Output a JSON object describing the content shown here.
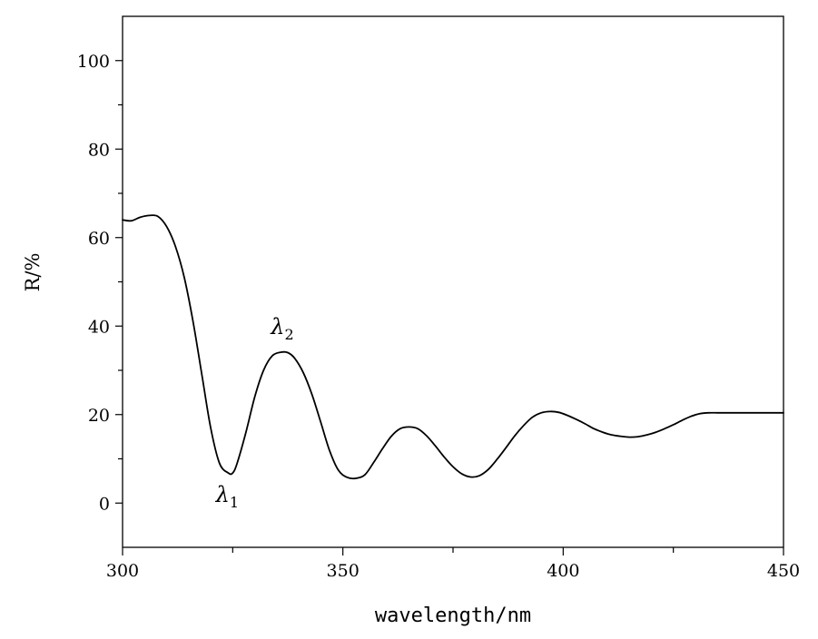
{
  "chart_data": {
    "type": "line",
    "title": "",
    "xlabel": "wavelength/nm",
    "ylabel": "R/%",
    "xlim": [
      300,
      450
    ],
    "ylim": [
      -10,
      110
    ],
    "x_ticks": [
      300,
      350,
      400,
      450
    ],
    "y_ticks": [
      0,
      20,
      40,
      60,
      80,
      100
    ],
    "x_minor_step": 25,
    "y_minor_step": 10,
    "grid": false,
    "series": [
      {
        "color": "#000000",
        "x": [
          300,
          302,
          304,
          306,
          308,
          310,
          312,
          314,
          316,
          318,
          320,
          322,
          324,
          325,
          326,
          328,
          330,
          332,
          334,
          336,
          337.5,
          339,
          341,
          343,
          345,
          347,
          349,
          351,
          353,
          355,
          357,
          359,
          361,
          363,
          365,
          367,
          369,
          371,
          373,
          375,
          377,
          379,
          381,
          383,
          385,
          387,
          389,
          391,
          393,
          395,
          397,
          399,
          401,
          403,
          405,
          407,
          409,
          411,
          413,
          415,
          417,
          419,
          421,
          423,
          425,
          427,
          429,
          431,
          433,
          435,
          437,
          439,
          441,
          443,
          445,
          447,
          449,
          450
        ],
        "y": [
          64,
          63.8,
          64.6,
          65,
          64.8,
          62.5,
          58,
          51,
          41,
          29,
          17,
          9,
          6.8,
          6.8,
          9,
          16,
          24,
          30,
          33.3,
          34.1,
          34,
          32.8,
          29.5,
          24.5,
          18.2,
          11.8,
          7.4,
          5.8,
          5.6,
          6.4,
          9.2,
          12.3,
          15.1,
          16.8,
          17.2,
          16.8,
          15.2,
          12.9,
          10.4,
          8.2,
          6.6,
          5.9,
          6.2,
          7.6,
          9.9,
          12.5,
          15.2,
          17.5,
          19.4,
          20.4,
          20.7,
          20.5,
          19.8,
          18.9,
          17.9,
          16.8,
          16.0,
          15.4,
          15.1,
          14.9,
          15.0,
          15.4,
          16.0,
          16.8,
          17.7,
          18.7,
          19.6,
          20.2,
          20.4,
          20.4,
          20.4,
          20.4,
          20.4,
          20.4,
          20.4,
          20.4,
          20.4,
          20.4
        ]
      }
    ],
    "annotations": [
      {
        "label": "λ",
        "sub": "1",
        "x": 325,
        "y": 6.8,
        "anchor": "below"
      },
      {
        "label": "λ",
        "sub": "2",
        "x": 337.5,
        "y": 34.1,
        "anchor": "above"
      }
    ]
  }
}
